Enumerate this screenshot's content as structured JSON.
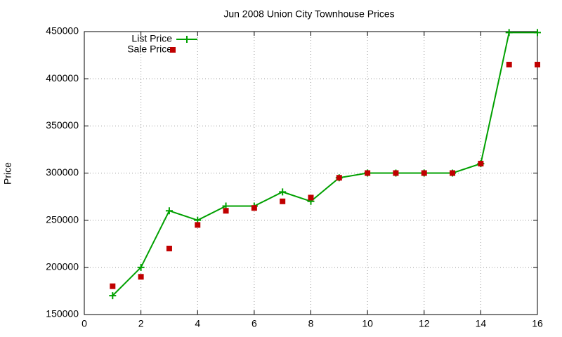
{
  "chart_data": {
    "type": "line",
    "title": "Jun 2008 Union City Townhouse Prices",
    "y_label": "Price",
    "x": [
      1,
      2,
      3,
      4,
      5,
      6,
      7,
      8,
      9,
      10,
      11,
      12,
      13,
      14,
      15,
      16
    ],
    "series": [
      {
        "name": "List Price",
        "color": "#00a000",
        "style": "linespoints",
        "values": [
          170000,
          200000,
          260000,
          250000,
          265000,
          265000,
          280000,
          270000,
          295000,
          300000,
          300000,
          300000,
          300000,
          310000,
          449000,
          449000
        ]
      },
      {
        "name": "Sale Price",
        "color": "#c00000",
        "style": "points",
        "values": [
          180000,
          190000,
          220000,
          245000,
          260000,
          263000,
          270000,
          274000,
          295000,
          300000,
          300000,
          300000,
          300000,
          310000,
          415000,
          415000
        ]
      }
    ],
    "xlim": [
      0,
      16
    ],
    "xticks": [
      0,
      2,
      4,
      6,
      8,
      10,
      12,
      14,
      16
    ],
    "ylim": [
      150000,
      450000
    ],
    "yticks": [
      150000,
      200000,
      250000,
      300000,
      350000,
      400000,
      450000
    ],
    "grid": true,
    "legend": "top-left"
  }
}
